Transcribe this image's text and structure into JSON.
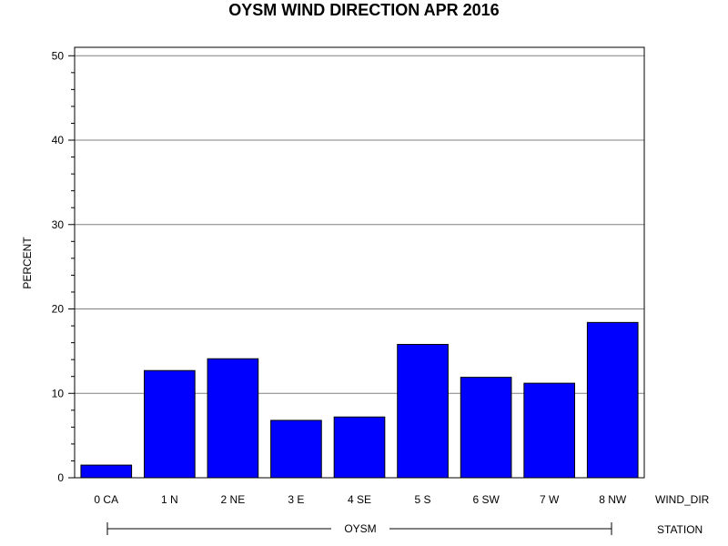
{
  "chart_data": {
    "type": "bar",
    "title": "OYSM WIND DIRECTION APR 2016",
    "ylabel": "PERCENT",
    "xlabel": "WIND_DIR",
    "group_label": "STATION",
    "group_name": "OYSM",
    "categories": [
      "0 CA",
      "1 N",
      "2 NE",
      "3 E",
      "4 SE",
      "5 S",
      "6 SW",
      "7 W",
      "8 NW"
    ],
    "values": [
      1.5,
      12.7,
      14.1,
      6.8,
      7.2,
      15.8,
      11.9,
      11.2,
      18.4
    ],
    "ylim": [
      0,
      51
    ],
    "yticks": [
      "0",
      "10",
      "20",
      "30",
      "40",
      "50"
    ],
    "grid": true,
    "bar_color": "#0000ff"
  }
}
